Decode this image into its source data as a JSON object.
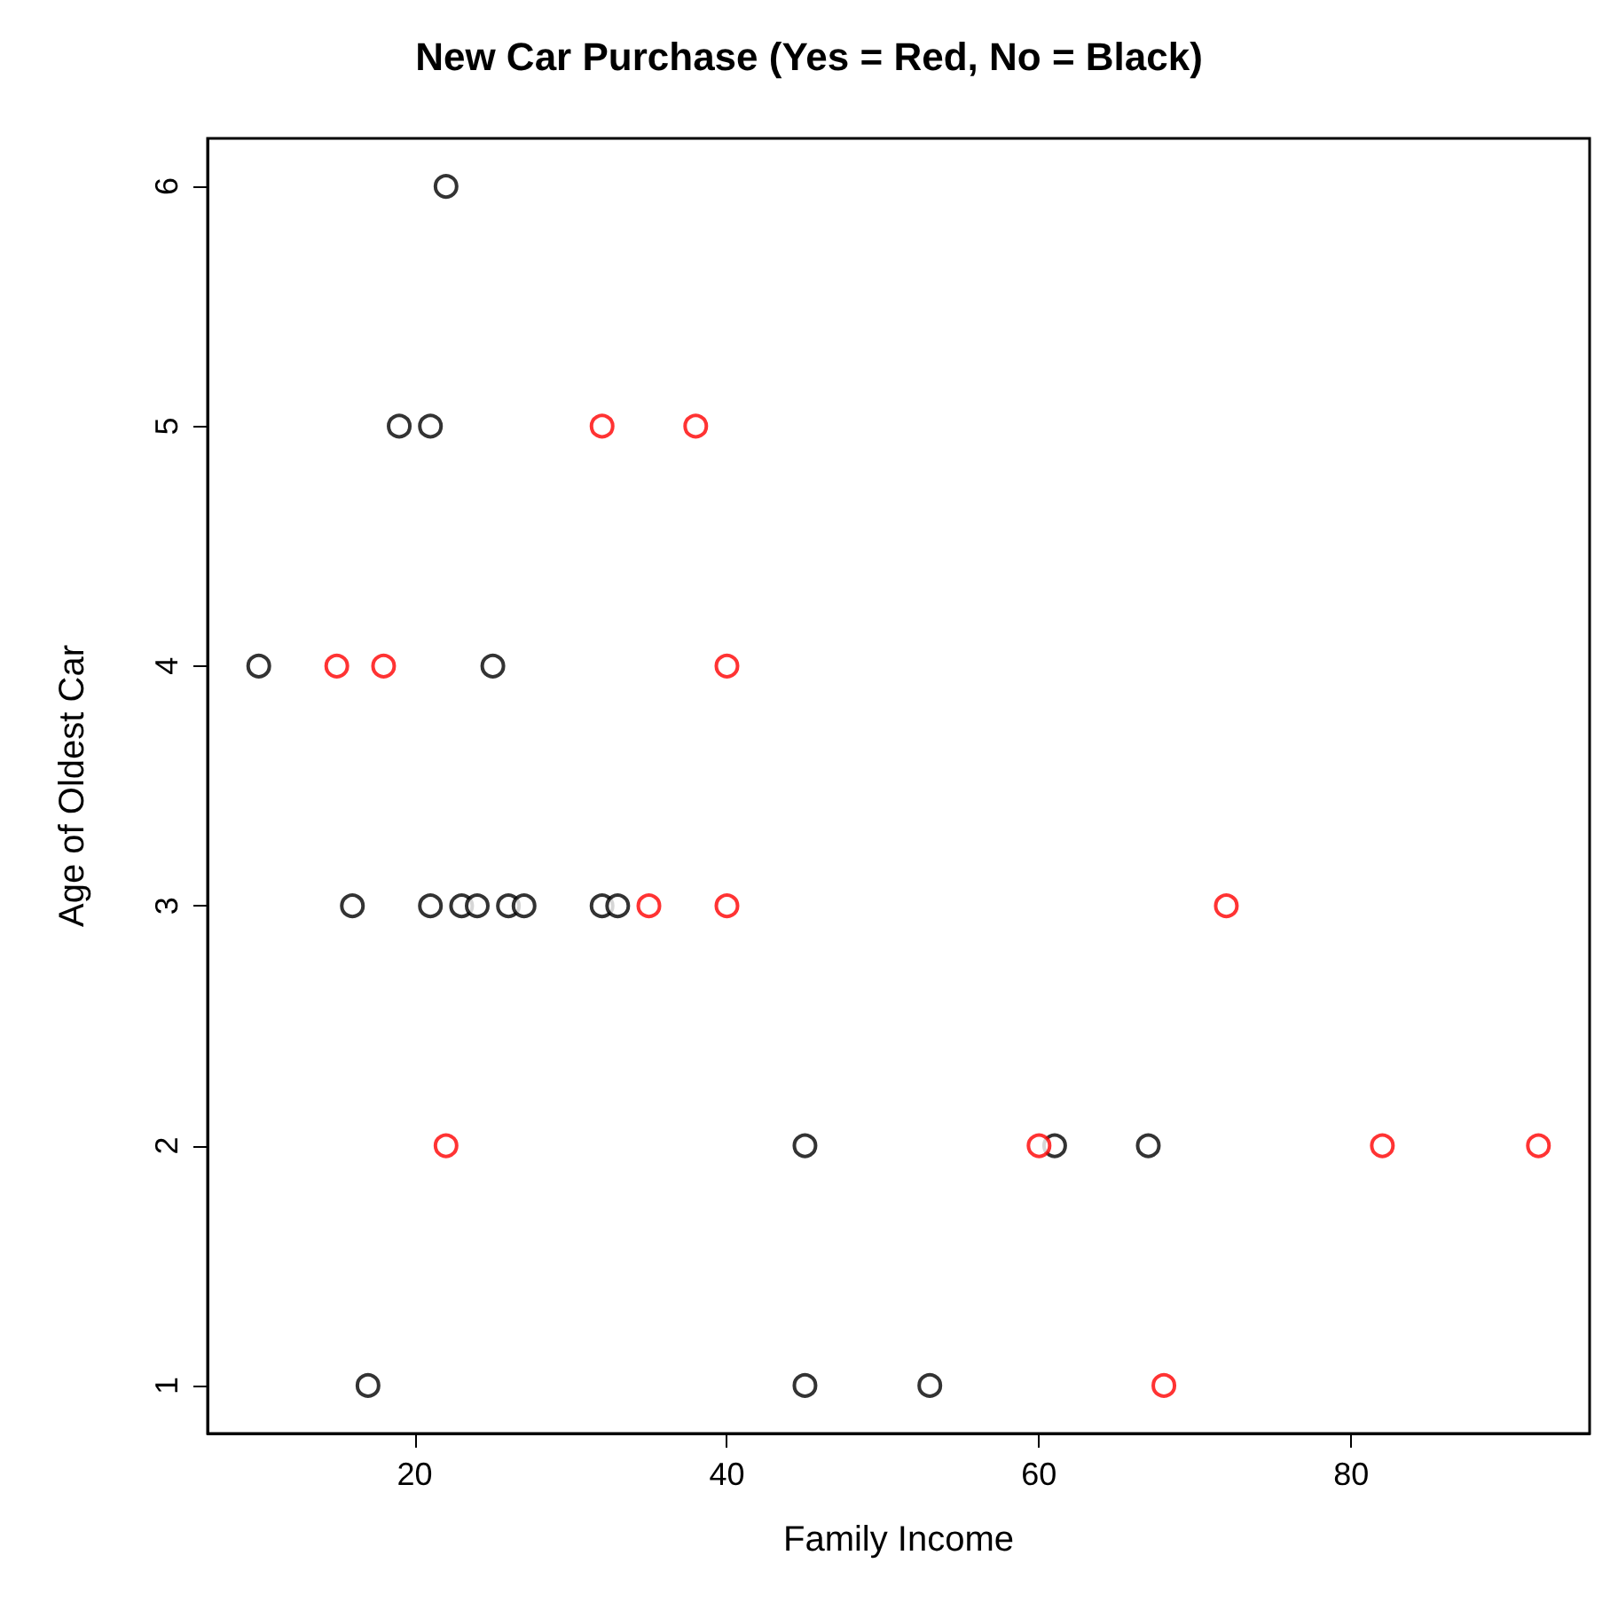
{
  "chart_data": {
    "type": "scatter",
    "title": "New Car Purchase (Yes = Red, No = Black)",
    "xlabel": "Family Income",
    "ylabel": "Age of Oldest Car",
    "series": [
      {
        "color": "#000000",
        "x": [
          10,
          17,
          22,
          19,
          21,
          25,
          16,
          21,
          23,
          24,
          26,
          27,
          32,
          33,
          45,
          61,
          67,
          45,
          53
        ],
        "values": [
          4,
          1,
          6,
          5,
          5,
          4,
          3,
          3,
          3,
          3,
          3,
          3,
          3,
          3,
          2,
          2,
          2,
          1,
          1
        ]
      },
      {
        "color": "#ff0000",
        "x": [
          32,
          38,
          15,
          18,
          40,
          35,
          40,
          72,
          22,
          60,
          82,
          92,
          68
        ],
        "values": [
          5,
          5,
          4,
          4,
          4,
          3,
          3,
          3,
          2,
          2,
          2,
          2,
          1
        ]
      }
    ],
    "xlim": [
      6.72,
      95.28
    ],
    "ylim": [
      0.8,
      6.2
    ],
    "xticks": [
      20,
      40,
      60,
      80
    ],
    "yticks": [
      1,
      2,
      3,
      4,
      5,
      6
    ],
    "marker": "circle",
    "grid": false
  }
}
